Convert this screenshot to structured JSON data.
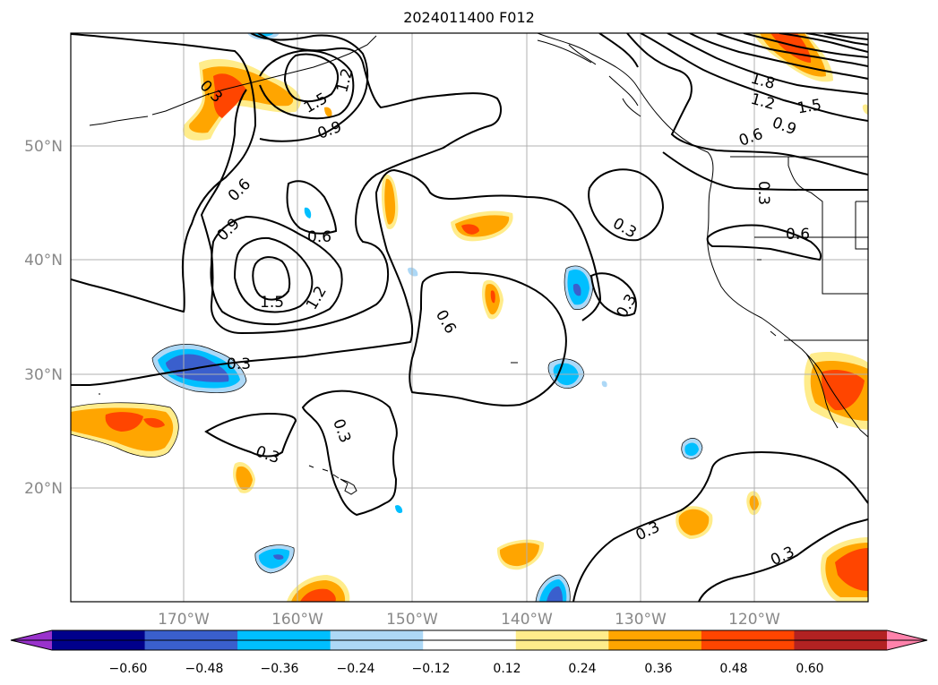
{
  "title": "2024011400 F012",
  "axes": {
    "lat_labels": [
      "50°N",
      "40°N",
      "30°N",
      "20°N"
    ],
    "lon_labels": [
      "170°W",
      "160°W",
      "150°W",
      "140°W",
      "130°W",
      "120°W"
    ],
    "grid": true,
    "label_color": "#888888"
  },
  "contour_labels": [
    "0.3",
    "1.5",
    "1.2",
    "0.9",
    "0.6",
    "0.9",
    "1.5",
    "1.2",
    "0.6",
    "1.8",
    "1.2",
    "1.5",
    "0.9",
    "0.6",
    "0.3",
    "0.6",
    "0.3",
    "0.6",
    "0.3",
    "0.3",
    "0.3",
    "0.3",
    "0.3"
  ],
  "colorbar": {
    "ticks": [
      "−0.60",
      "−0.48",
      "−0.36",
      "−0.24",
      "−0.12",
      "0.12",
      "0.24",
      "0.36",
      "0.48",
      "0.60"
    ],
    "colors": [
      "#9932cc",
      "#00008b",
      "#3a5fcd",
      "#00bfff",
      "#add8f6",
      "#ffffff",
      "#ffec8b",
      "#ffa500",
      "#ff4500",
      "#b22222",
      "#ff82ab"
    ]
  },
  "fill_colors": {
    "light_orange": "#ffec8b",
    "orange": "#ffa500",
    "red_orange": "#ff4500",
    "light_blue": "#add8f6",
    "blue": "#00bfff",
    "dark_blue": "#3a5fcd"
  }
}
